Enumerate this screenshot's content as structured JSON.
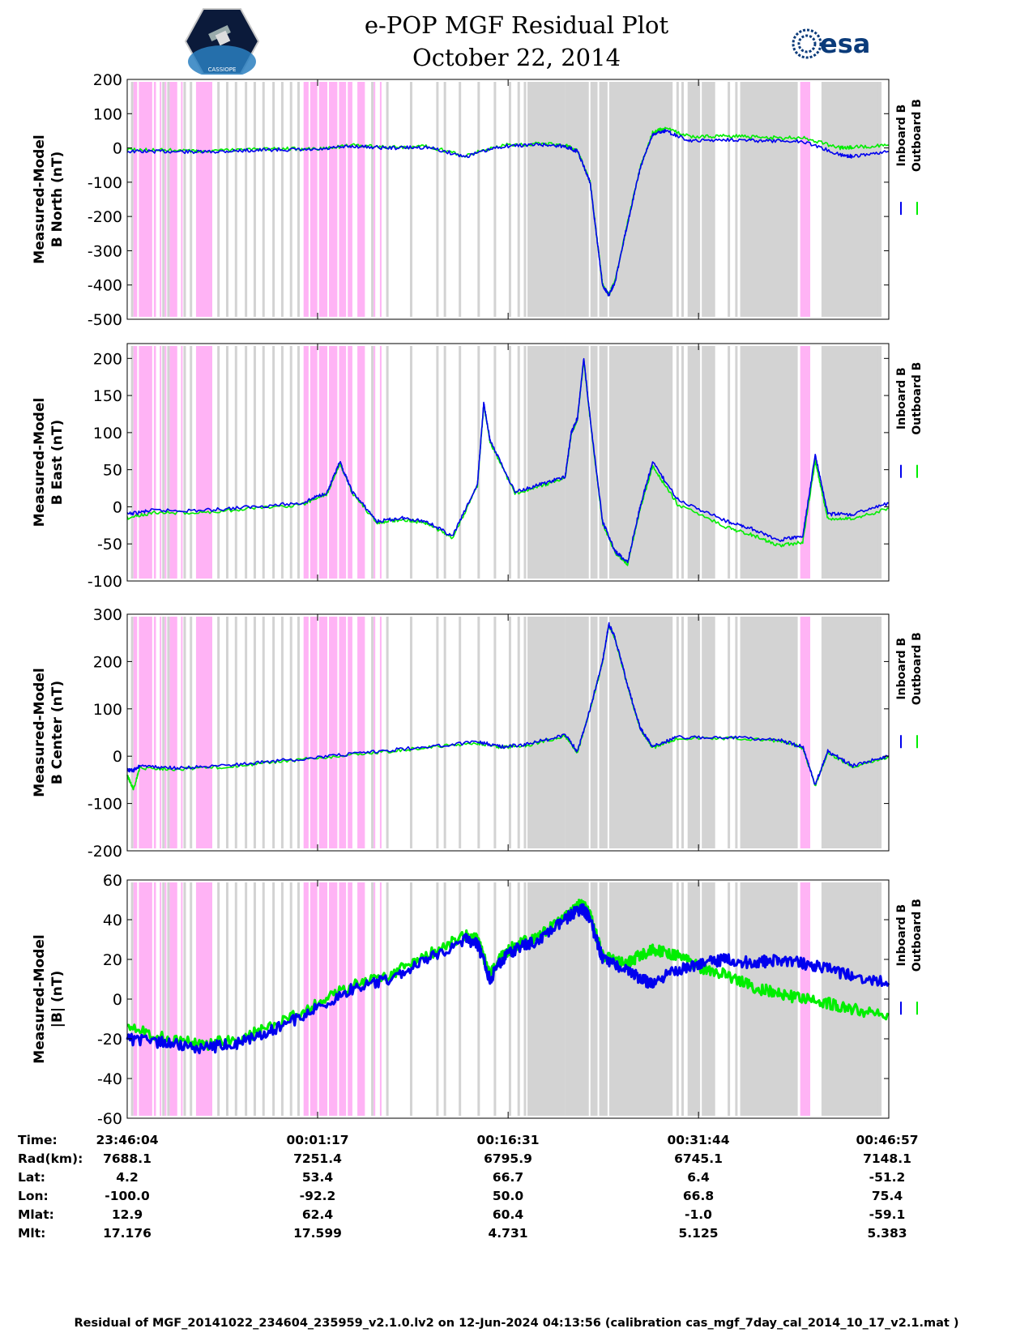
{
  "title": {
    "line1": "e-POP MGF Residual Plot",
    "line2": "October 22, 2014",
    "esa_logo_text": "esa",
    "epop_logo_text": "CASSIOPE"
  },
  "colors": {
    "inboard": "#0000ee",
    "outboard": "#00ee00",
    "gray_band": "#d3d3d3",
    "pink_band": "#ffb3f5"
  },
  "legend": {
    "inboard_label": "Inboard B",
    "outboard_label": "Outboard B"
  },
  "chart_data": [
    {
      "type": "line",
      "ylabel_line1": "Measured-Model",
      "ylabel_line2": "B North (nT)",
      "ylim": [
        -500,
        200
      ],
      "yticks": [
        200,
        100,
        0,
        -100,
        -200,
        -300,
        -400,
        -500
      ],
      "xlim_minutes": [
        0,
        60.88
      ],
      "series": [
        {
          "name": "Inboard B",
          "x": [
            0,
            3,
            6,
            9,
            12,
            15,
            18,
            21,
            24,
            27,
            30,
            33,
            35,
            36,
            37,
            37.5,
            38,
            38.5,
            39,
            40,
            41,
            42,
            43,
            45,
            48,
            51,
            54,
            57,
            58,
            60.88
          ],
          "y": [
            -10,
            -10,
            -12,
            -8,
            -5,
            -6,
            5,
            0,
            2,
            -25,
            5,
            10,
            5,
            -10,
            -100,
            -250,
            -400,
            -430,
            -390,
            -220,
            -60,
            40,
            50,
            20,
            25,
            20,
            20,
            -20,
            -25,
            -10
          ]
        },
        {
          "name": "Outboard B",
          "x": [
            0,
            3,
            6,
            9,
            12,
            15,
            18,
            21,
            24,
            27,
            30,
            33,
            35,
            36,
            37,
            37.5,
            38,
            38.5,
            39,
            40,
            41,
            42,
            43,
            45,
            48,
            51,
            54,
            57,
            58,
            60.88
          ],
          "y": [
            -5,
            -6,
            -10,
            -5,
            -2,
            -4,
            8,
            2,
            4,
            -22,
            8,
            12,
            8,
            -8,
            -98,
            -248,
            -398,
            -428,
            -388,
            -218,
            -58,
            45,
            58,
            32,
            35,
            30,
            30,
            0,
            2,
            8
          ]
        }
      ]
    },
    {
      "type": "line",
      "ylabel_line1": "Measured-Model",
      "ylabel_line2": "B East (nT)",
      "ylim": [
        -100,
        220
      ],
      "yticks": [
        200,
        150,
        100,
        50,
        0,
        -50,
        -100
      ],
      "xlim_minutes": [
        0,
        60.88
      ],
      "series": [
        {
          "name": "Inboard B",
          "x": [
            0,
            2,
            6,
            10,
            14,
            16,
            17,
            18,
            20,
            22,
            24,
            26,
            28,
            28.5,
            29,
            31,
            33,
            35,
            35.5,
            36,
            36.5,
            37,
            38,
            39,
            40,
            41,
            42,
            44,
            48,
            50,
            52,
            54,
            55,
            56,
            58,
            60.88
          ],
          "y": [
            -10,
            -5,
            -5,
            0,
            5,
            20,
            60,
            20,
            -20,
            -15,
            -20,
            -40,
            30,
            140,
            90,
            20,
            30,
            40,
            100,
            120,
            200,
            120,
            -20,
            -60,
            -75,
            0,
            60,
            10,
            -20,
            -30,
            -45,
            -40,
            70,
            -10,
            -10,
            5
          ]
        },
        {
          "name": "Outboard B",
          "x": [
            0,
            2,
            6,
            10,
            14,
            16,
            17,
            18,
            20,
            22,
            24,
            26,
            28,
            28.5,
            29,
            31,
            33,
            35,
            35.5,
            36,
            36.5,
            37,
            38,
            39,
            40,
            41,
            42,
            44,
            48,
            50,
            52,
            54,
            55,
            56,
            58,
            60.88
          ],
          "y": [
            -15,
            -8,
            -8,
            -2,
            3,
            18,
            58,
            18,
            -22,
            -17,
            -22,
            -42,
            28,
            138,
            88,
            18,
            28,
            38,
            98,
            118,
            198,
            118,
            -22,
            -62,
            -77,
            -3,
            55,
            3,
            -28,
            -38,
            -52,
            -48,
            62,
            -16,
            -16,
            -2
          ]
        }
      ]
    },
    {
      "type": "line",
      "ylabel_line1": "Measured-Model",
      "ylabel_line2": "B Center (nT)",
      "ylim": [
        -200,
        300
      ],
      "yticks": [
        300,
        200,
        100,
        0,
        -100,
        -200
      ],
      "xlim_minutes": [
        0,
        60.88
      ],
      "series": [
        {
          "name": "Inboard B",
          "x": [
            0,
            0.5,
            1,
            4,
            8,
            12,
            16,
            20,
            24,
            28,
            30,
            32,
            35,
            36,
            37,
            38,
            38.5,
            39,
            40,
            41,
            42,
            44,
            48,
            52,
            54,
            55,
            56,
            58,
            60.88
          ],
          "y": [
            -30,
            -30,
            -20,
            -25,
            -20,
            -10,
            0,
            10,
            20,
            30,
            20,
            25,
            45,
            10,
            100,
            200,
            280,
            250,
            150,
            60,
            20,
            40,
            40,
            35,
            20,
            -60,
            10,
            -20,
            0
          ]
        },
        {
          "name": "Outboard B",
          "x": [
            0,
            0.5,
            1,
            4,
            8,
            12,
            16,
            20,
            24,
            28,
            30,
            32,
            35,
            36,
            37,
            38,
            38.5,
            39,
            40,
            41,
            42,
            44,
            48,
            52,
            54,
            55,
            56,
            58,
            60.88
          ],
          "y": [
            -40,
            -70,
            -25,
            -27,
            -22,
            -12,
            -2,
            8,
            18,
            28,
            18,
            23,
            43,
            8,
            98,
            198,
            278,
            248,
            148,
            58,
            18,
            38,
            38,
            33,
            18,
            -62,
            8,
            -22,
            -2
          ]
        }
      ]
    },
    {
      "type": "line",
      "ylabel_line1": "Measured-Model",
      "ylabel_line2": "|B| (nT)",
      "ylim": [
        -60,
        60
      ],
      "yticks": [
        60,
        40,
        20,
        0,
        -20,
        -40,
        -60
      ],
      "xlim_minutes": [
        0,
        60.88
      ],
      "series": [
        {
          "name": "Inboard B",
          "x": [
            0,
            3,
            6,
            9,
            12,
            15,
            18,
            21,
            24,
            27,
            28,
            29,
            30,
            31,
            33,
            35,
            36,
            36.5,
            37,
            38,
            40,
            41,
            42,
            44,
            46,
            48,
            50,
            52,
            54,
            56,
            58,
            60.88
          ],
          "y": [
            -20,
            -22,
            -25,
            -22,
            -15,
            -5,
            5,
            10,
            20,
            30,
            28,
            10,
            20,
            25,
            30,
            40,
            45,
            45,
            40,
            20,
            15,
            10,
            8,
            15,
            18,
            20,
            18,
            20,
            18,
            15,
            12,
            8
          ]
        },
        {
          "name": "Outboard B",
          "x": [
            0,
            3,
            6,
            9,
            12,
            15,
            18,
            21,
            24,
            27,
            28,
            29,
            30,
            31,
            33,
            35,
            36,
            36.5,
            37,
            38,
            40,
            41,
            42,
            44,
            46,
            48,
            50,
            52,
            54,
            56,
            58,
            60.88
          ],
          "y": [
            -12,
            -20,
            -23,
            -20,
            -13,
            -3,
            7,
            12,
            22,
            32,
            30,
            12,
            22,
            27,
            32,
            42,
            47,
            47,
            42,
            22,
            18,
            22,
            25,
            22,
            15,
            12,
            6,
            3,
            0,
            -2,
            -5,
            -8
          ]
        }
      ]
    }
  ],
  "axis_table": {
    "row_labels": [
      "Time:",
      "Rad(km):",
      "Lat:",
      "Lon:",
      "Mlat:",
      "Mlt:"
    ],
    "columns": [
      [
        "23:46:04",
        "7688.1",
        "4.2",
        "-100.0",
        "12.9",
        "17.176"
      ],
      [
        "00:01:17",
        "7251.4",
        "53.4",
        "-92.2",
        "62.4",
        "17.599"
      ],
      [
        "00:16:31",
        "6795.9",
        "66.7",
        "50.0",
        "60.4",
        "4.731"
      ],
      [
        "00:31:44",
        "6745.1",
        "6.4",
        "66.8",
        "-1.0",
        "5.125"
      ],
      [
        "00:46:57",
        "7148.1",
        "-51.2",
        "75.4",
        "-59.1",
        "5.383"
      ]
    ]
  },
  "footer": "Residual of MGF_20141022_234604_235959_v2.1.0.lv2 on 12-Jun-2024 04:13:56 (calibration cas_mgf_7day_cal_2014_10_17_v2.1.mat )"
}
